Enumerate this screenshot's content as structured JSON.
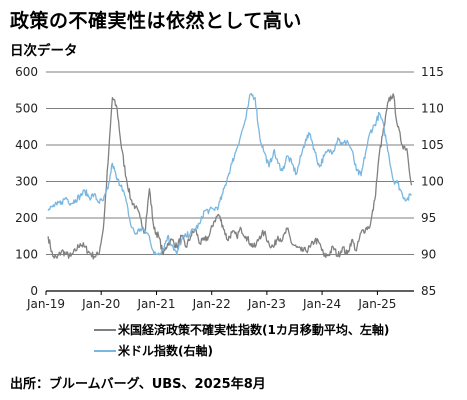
{
  "title": "政策の不確実性は依然として高い",
  "subtitle": "日次データ",
  "source": "出所：ブルームバーグ、UBS、2025年8月",
  "colors": {
    "epu": "#808080",
    "usd": "#7ab7e0",
    "axis": "#000000",
    "grid": "#000000"
  },
  "chart_data": {
    "type": "line",
    "title": "政策の不確実性は依然として高い",
    "x_tick_labels": [
      "Jan-19",
      "Jan-20",
      "Jan-21",
      "Jan-22",
      "Jan-23",
      "Jan-24",
      "Jan-25"
    ],
    "x_range": [
      "2019-01-01",
      "2025-08-31"
    ],
    "y_left": {
      "range": [
        0,
        600
      ],
      "ticks": [
        0,
        100,
        200,
        300,
        400,
        500,
        600
      ]
    },
    "y_right": {
      "range": [
        85,
        115
      ],
      "ticks": [
        85,
        90,
        95,
        100,
        105,
        110,
        115
      ]
    },
    "grid": true,
    "legend_position": "bottom",
    "series": [
      {
        "name": "米国経済政策不確実性指数(1カ月移動平均、左軸)",
        "axis": "left",
        "x": [
          "2019-01",
          "2019-02",
          "2019-03",
          "2019-04",
          "2019-05",
          "2019-06",
          "2019-07",
          "2019-08",
          "2019-09",
          "2019-10",
          "2019-11",
          "2019-12",
          "2020-01",
          "2020-02",
          "2020-03",
          "2020-04",
          "2020-05",
          "2020-06",
          "2020-07",
          "2020-08",
          "2020-09",
          "2020-10",
          "2020-11",
          "2020-12",
          "2021-01",
          "2021-02",
          "2021-03",
          "2021-04",
          "2021-05",
          "2021-06",
          "2021-07",
          "2021-08",
          "2021-09",
          "2021-10",
          "2021-11",
          "2021-12",
          "2022-01",
          "2022-02",
          "2022-03",
          "2022-04",
          "2022-05",
          "2022-06",
          "2022-07",
          "2022-08",
          "2022-09",
          "2022-10",
          "2022-11",
          "2022-12",
          "2023-01",
          "2023-02",
          "2023-03",
          "2023-04",
          "2023-05",
          "2023-06",
          "2023-07",
          "2023-08",
          "2023-09",
          "2023-10",
          "2023-11",
          "2023-12",
          "2024-01",
          "2024-02",
          "2024-03",
          "2024-04",
          "2024-05",
          "2024-06",
          "2024-07",
          "2024-08",
          "2024-09",
          "2024-10",
          "2024-11",
          "2024-12",
          "2025-01",
          "2025-02",
          "2025-03",
          "2025-04",
          "2025-05",
          "2025-06",
          "2025-07",
          "2025-08"
        ],
        "values": [
          150,
          95,
          90,
          110,
          100,
          95,
          110,
          130,
          120,
          105,
          95,
          100,
          170,
          350,
          530,
          500,
          390,
          310,
          250,
          230,
          200,
          160,
          280,
          170,
          150,
          100,
          130,
          140,
          120,
          150,
          120,
          150,
          170,
          130,
          140,
          150,
          190,
          210,
          180,
          140,
          160,
          150,
          170,
          150,
          130,
          120,
          150,
          160,
          130,
          120,
          150,
          140,
          170,
          130,
          120,
          110,
          110,
          120,
          140,
          130,
          95,
          100,
          120,
          95,
          120,
          100,
          140,
          110,
          160,
          170,
          180,
          250,
          380,
          450,
          520,
          540,
          450,
          400,
          390,
          290
        ]
      },
      {
        "name": "米ドル指数(右軸)",
        "axis": "right",
        "x": [
          "2019-01",
          "2019-02",
          "2019-03",
          "2019-04",
          "2019-05",
          "2019-06",
          "2019-07",
          "2019-08",
          "2019-09",
          "2019-10",
          "2019-11",
          "2019-12",
          "2020-01",
          "2020-02",
          "2020-03",
          "2020-04",
          "2020-05",
          "2020-06",
          "2020-07",
          "2020-08",
          "2020-09",
          "2020-10",
          "2020-11",
          "2020-12",
          "2021-01",
          "2021-02",
          "2021-03",
          "2021-04",
          "2021-05",
          "2021-06",
          "2021-07",
          "2021-08",
          "2021-09",
          "2021-10",
          "2021-11",
          "2021-12",
          "2022-01",
          "2022-02",
          "2022-03",
          "2022-04",
          "2022-05",
          "2022-06",
          "2022-07",
          "2022-08",
          "2022-09",
          "2022-10",
          "2022-11",
          "2022-12",
          "2023-01",
          "2023-02",
          "2023-03",
          "2023-04",
          "2023-05",
          "2023-06",
          "2023-07",
          "2023-08",
          "2023-09",
          "2023-10",
          "2023-11",
          "2023-12",
          "2024-01",
          "2024-02",
          "2024-03",
          "2024-04",
          "2024-05",
          "2024-06",
          "2024-07",
          "2024-08",
          "2024-09",
          "2024-10",
          "2024-11",
          "2024-12",
          "2025-01",
          "2025-02",
          "2025-03",
          "2025-04",
          "2025-05",
          "2025-06",
          "2025-07",
          "2025-08"
        ],
        "values": [
          96.0,
          96.6,
          96.8,
          97.2,
          97.8,
          97.0,
          97.5,
          98.0,
          98.7,
          97.8,
          98.2,
          97.2,
          97.4,
          99.0,
          102.5,
          100.2,
          99.5,
          97.2,
          94.0,
          92.8,
          93.5,
          93.2,
          92.5,
          90.0,
          90.2,
          90.8,
          92.5,
          91.3,
          90.0,
          92.0,
          92.5,
          93.0,
          93.5,
          94.2,
          96.0,
          96.0,
          96.2,
          96.6,
          98.3,
          100.5,
          102.5,
          104.5,
          106.5,
          108.6,
          112.0,
          111.5,
          106.0,
          104.0,
          102.0,
          104.2,
          102.5,
          101.5,
          103.5,
          102.5,
          101.0,
          103.5,
          105.8,
          106.5,
          104.0,
          102.0,
          103.5,
          104.2,
          104.2,
          106.0,
          105.0,
          105.6,
          104.3,
          101.5,
          100.8,
          104.0,
          106.8,
          107.8,
          109.3,
          107.2,
          104.0,
          100.2,
          99.8,
          98.2,
          97.5,
          98.2
        ]
      }
    ]
  }
}
